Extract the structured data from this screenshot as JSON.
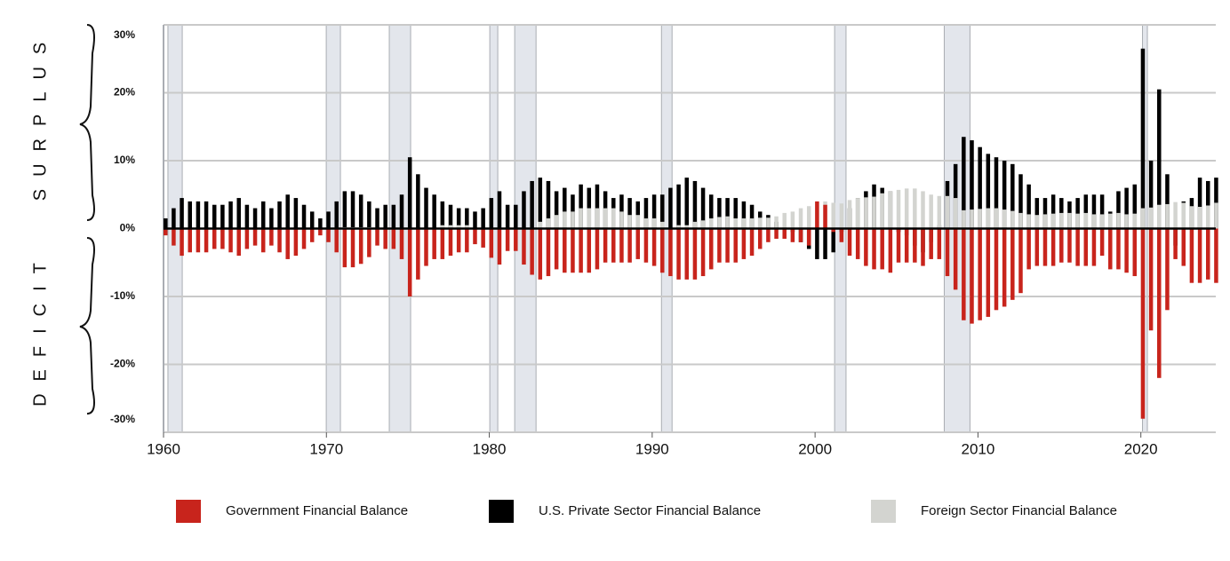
{
  "chart_data": {
    "type": "bar",
    "annotations": {
      "upper": "SURPLUS",
      "lower": "DEFICIT"
    },
    "xlim": [
      1960,
      2024.6
    ],
    "xticks": [
      1960,
      1970,
      1980,
      1990,
      2000,
      2010,
      2020
    ],
    "ylim": [
      -30,
      30
    ],
    "yticks": [
      {
        "value": 30,
        "label": "30%"
      },
      {
        "value": 20,
        "label": "20%"
      },
      {
        "value": 10,
        "label": "10%"
      },
      {
        "value": 0,
        "label": "0%"
      },
      {
        "value": -10,
        "label": "-10%"
      },
      {
        "value": -20,
        "label": "-20%"
      },
      {
        "value": -30,
        "label": "-30%"
      }
    ],
    "grid": true,
    "shaded_periods": [
      [
        1960.27,
        1961.15
      ],
      [
        1969.99,
        1970.86
      ],
      [
        1973.86,
        1975.17
      ],
      [
        1980.03,
        1980.52
      ],
      [
        1981.56,
        1982.87
      ],
      [
        1990.57,
        1991.22
      ],
      [
        2001.2,
        2001.9
      ],
      [
        2007.93,
        2009.51
      ],
      [
        2020.1,
        2020.4
      ]
    ],
    "shade_color": "#e3e6ec",
    "x": [
      1960,
      1960.5,
      1961,
      1961.5,
      1962,
      1962.5,
      1963,
      1963.5,
      1964,
      1964.5,
      1965,
      1965.5,
      1966,
      1966.5,
      1967,
      1967.5,
      1968,
      1968.5,
      1969,
      1969.5,
      1970,
      1970.5,
      1971,
      1971.5,
      1972,
      1972.5,
      1973,
      1973.5,
      1974,
      1974.5,
      1975,
      1975.5,
      1976,
      1976.5,
      1977,
      1977.5,
      1978,
      1978.5,
      1979,
      1979.5,
      1980,
      1980.5,
      1981,
      1981.5,
      1982,
      1982.5,
      1983,
      1983.5,
      1984,
      1984.5,
      1985,
      1985.5,
      1986,
      1986.5,
      1987,
      1987.5,
      1988,
      1988.5,
      1989,
      1989.5,
      1990,
      1990.5,
      1991,
      1991.5,
      1992,
      1992.5,
      1993,
      1993.5,
      1994,
      1994.5,
      1995,
      1995.5,
      1996,
      1996.5,
      1997,
      1997.5,
      1998,
      1998.5,
      1999,
      1999.5,
      2000,
      2000.5,
      2001,
      2001.5,
      2002,
      2002.5,
      2003,
      2003.5,
      2004,
      2004.5,
      2005,
      2005.5,
      2006,
      2006.5,
      2007,
      2007.5,
      2008,
      2008.5,
      2009,
      2009.5,
      2010,
      2010.5,
      2011,
      2011.5,
      2012,
      2012.5,
      2013,
      2013.5,
      2014,
      2014.5,
      2015,
      2015.5,
      2016,
      2016.5,
      2017,
      2017.5,
      2018,
      2018.5,
      2019,
      2019.5,
      2020,
      2020.5,
      2021,
      2021.5,
      2022,
      2022.5,
      2023,
      2023.5,
      2024,
      2024.5
    ],
    "series": [
      {
        "name": "U.S. Private Sector Financial Balance",
        "color": "#000000",
        "values": [
          1.5,
          3,
          4.5,
          4,
          4,
          4,
          3.5,
          3.5,
          4,
          4.5,
          3.5,
          3,
          4,
          3,
          4,
          5,
          4.5,
          3.5,
          2.5,
          1.5,
          2.5,
          4,
          5.5,
          5.5,
          5,
          4,
          3,
          3.5,
          3.5,
          5,
          10.5,
          8,
          6,
          5,
          4,
          3.5,
          3,
          3,
          2.5,
          3,
          4.5,
          5.5,
          3.5,
          3.5,
          5.5,
          7,
          7.5,
          7,
          5.5,
          6,
          5,
          6.5,
          6,
          6.5,
          5.5,
          4.5,
          5,
          4.5,
          4,
          4.5,
          5,
          5,
          6,
          6.5,
          7.5,
          7,
          6,
          5,
          4.5,
          4.5,
          4.5,
          4,
          3.5,
          2.5,
          2,
          1,
          0,
          -0.5,
          -2,
          -3,
          -4.5,
          -4.5,
          -3.5,
          -0.5,
          3,
          4.5,
          5.5,
          6.5,
          6,
          5.5,
          -0.5,
          -1,
          -2.5,
          -3.5,
          -2,
          0.5,
          7,
          9.5,
          13.5,
          13,
          12,
          11,
          10.5,
          10,
          9.5,
          8,
          6.5,
          4.5,
          4.5,
          5,
          4.5,
          4,
          4.5,
          5,
          5,
          5,
          2.5,
          5.5,
          6,
          6.5,
          26.5,
          10,
          20.5,
          8,
          -2.5,
          4,
          4.5,
          7.5,
          7,
          7.5
        ]
      },
      {
        "name": "Foreign Sector Financial Balance",
        "color": "#d3d4d0",
        "values": [
          -0.5,
          -0.5,
          -0.5,
          -0.5,
          -0.5,
          -0.5,
          -0.5,
          -0.5,
          -0.5,
          -0.5,
          -0.5,
          -0.5,
          -0.5,
          -0.5,
          -0.5,
          -0.5,
          -0.5,
          -0.5,
          -0.5,
          -0.5,
          -0.5,
          -0.5,
          0.2,
          0.2,
          0.2,
          0.2,
          -0.5,
          -0.5,
          -0.5,
          -0.5,
          -0.5,
          -0.5,
          -0.5,
          -0.5,
          0.5,
          0.5,
          0.5,
          0.5,
          -0.2,
          -0.2,
          -0.2,
          -0.2,
          -0.2,
          -0.2,
          -0.2,
          -0.2,
          1,
          1.5,
          2,
          2.5,
          2.5,
          3,
          3,
          3,
          3,
          3,
          2.5,
          2,
          2,
          1.5,
          1.5,
          1,
          0,
          0.5,
          0.5,
          1,
          1.2,
          1.5,
          1.7,
          1.8,
          1.5,
          1.5,
          1.5,
          1.6,
          1.6,
          1.8,
          2.3,
          2.5,
          3,
          3.3,
          3.8,
          4,
          3.8,
          3.7,
          4.2,
          4.5,
          4.6,
          4.7,
          5.2,
          5.5,
          5.7,
          5.9,
          5.9,
          5.5,
          5,
          4.8,
          4.8,
          4.5,
          2.7,
          2.8,
          2.9,
          3,
          3,
          2.8,
          2.6,
          2.3,
          2.1,
          2,
          2.1,
          2.2,
          2.3,
          2.3,
          2.2,
          2.3,
          2.1,
          2.1,
          2.2,
          2.3,
          2.1,
          2.2,
          3,
          3.1,
          3.5,
          3.6,
          3.9,
          3.8,
          3.3,
          3.2,
          3.4,
          3.8
        ]
      },
      {
        "name": "Government Financial Balance",
        "color": "#c8241c",
        "values": [
          -1,
          -2.5,
          -4,
          -3.5,
          -3.5,
          -3.5,
          -3,
          -3,
          -3.5,
          -4,
          -3,
          -2.5,
          -3.5,
          -2.5,
          -3.5,
          -4.5,
          -4,
          -3,
          -2,
          -1,
          -2,
          -3.5,
          -5.7,
          -5.7,
          -5.2,
          -4.2,
          -2.5,
          -3,
          -3,
          -4.5,
          -10,
          -7.5,
          -5.5,
          -4.5,
          -4.5,
          -4,
          -3.5,
          -3.5,
          -2.3,
          -2.8,
          -4.3,
          -5.3,
          -3.3,
          -3.3,
          -5.3,
          -6.8,
          -7.5,
          -7,
          -6,
          -6.5,
          -6.5,
          -6.5,
          -6.5,
          -6,
          -5,
          -5,
          -5,
          -5,
          -4.5,
          -5,
          -5.5,
          -6.5,
          -7,
          -7.5,
          -7.5,
          -7.5,
          -7,
          -6,
          -5,
          -5,
          -5,
          -4.5,
          -4,
          -3,
          -2,
          -1.5,
          -1.5,
          -2,
          -2,
          -2.5,
          4,
          3.5,
          -0.5,
          -2,
          -4,
          -4.5,
          -5.5,
          -6,
          -6,
          -6.5,
          -5,
          -5,
          -5,
          -5.5,
          -4.5,
          -4.5,
          -7,
          -9,
          -13.5,
          -14,
          -13.5,
          -13,
          -12,
          -11.5,
          -10.5,
          -9.5,
          -6,
          -5.5,
          -5.5,
          -5.5,
          -5,
          -5,
          -5.5,
          -5.5,
          -5.5,
          -4,
          -6,
          -6,
          -6.5,
          -7,
          -28,
          -15,
          -22,
          -12,
          -4.5,
          -5.5,
          -8,
          -8,
          -7.5,
          -8
        ]
      }
    ],
    "legend_order": [
      2,
      0,
      1
    ]
  }
}
